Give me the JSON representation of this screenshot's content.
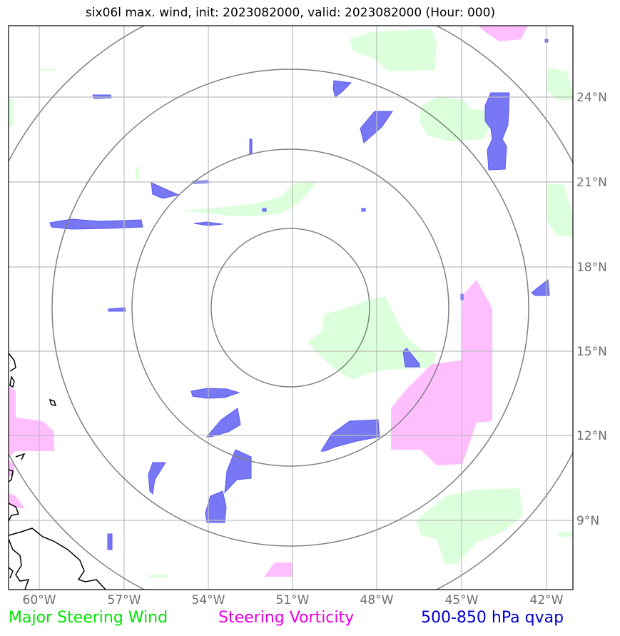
{
  "title": "six06l max. wind, init: 2023082000, valid: 2023082000 (Hour: 000)",
  "longitude_labels": [
    "60°W",
    "57°W",
    "54°W",
    "51°W",
    "48°W",
    "45°W",
    "42°W"
  ],
  "latitude_labels": [
    "24°N",
    "21°N",
    "18°N",
    "15°N",
    "12°N",
    "9°N"
  ],
  "legend": {
    "wind": "Major Steering Wind",
    "vorticity": "Steering Vorticity",
    "qvap": "500-850 hPa qvap"
  },
  "colors": {
    "wind": "#00e600",
    "vorticity": "#e600e6",
    "qvap": "#0000cc",
    "wind_fill": "#dcffdc",
    "vorticity_fill": "#ffbfff",
    "qvap_fill": "#7878f5"
  }
}
